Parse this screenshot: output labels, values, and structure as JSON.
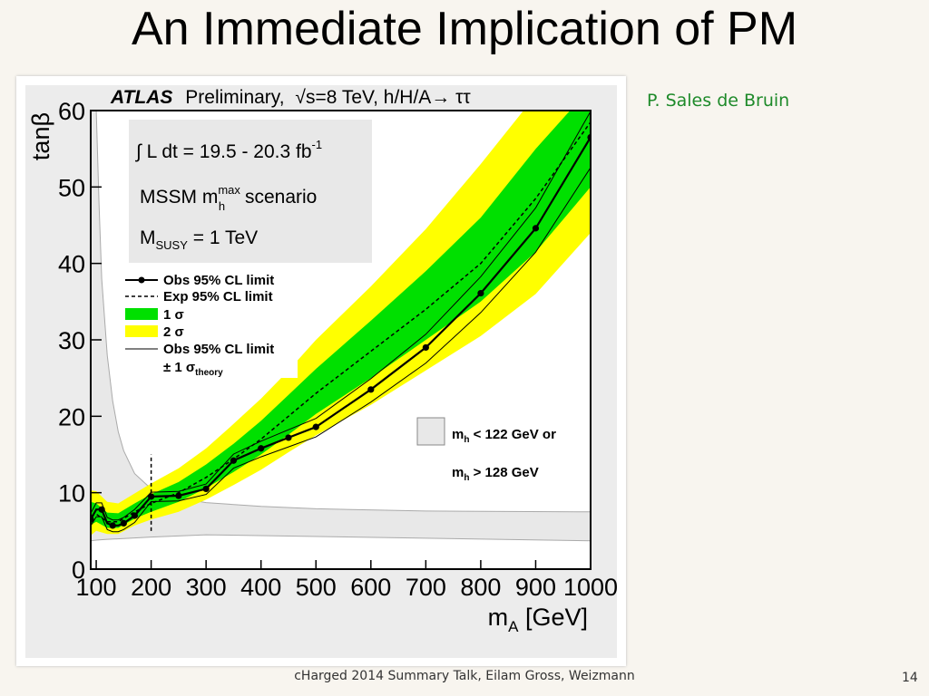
{
  "slide": {
    "title": "An Immediate Implication of PM",
    "author": "P. Sales de Bruin",
    "footer": "cHarged 2014 Summary Talk, Eilam Gross, Weizmann",
    "page_number": "14"
  },
  "chart_data": {
    "type": "line",
    "header": {
      "experiment": "ATLAS",
      "status": "Preliminary,",
      "energy": "√s=8 TeV, h/H/A→ ττ"
    },
    "info_box": {
      "lumi_prefix": "∫ L dt = 19.5 - 20.3 fb",
      "lumi_superscript": "-1",
      "scenario_prefix": "MSSM m",
      "scenario_sup": "max",
      "scenario_sub": "h",
      "scenario_suffix": " scenario",
      "msusy_prefix": "M",
      "msusy_sub": "SUSY",
      "msusy_suffix": " = 1 TeV"
    },
    "legend": {
      "obs": "Obs 95% CL limit",
      "exp": "Exp 95% CL limit",
      "one_sigma": "1 σ",
      "two_sigma": "2 σ",
      "theory_line1": "Obs 95% CL limit",
      "theory_line2_prefix": "± 1 σ",
      "theory_line2_sub": "theory"
    },
    "excluded_box": {
      "line1_prefix": "m",
      "line1_sub": "h",
      "line1_suffix": " < 122 GeV or",
      "line2_prefix": "m",
      "line2_sub": "h",
      "line2_suffix": " > 128 GeV"
    },
    "xlabel_main": "m",
    "xlabel_sub": "A",
    "xlabel_unit": " [GeV]",
    "ylabel": "tanβ",
    "xlim": [
      90,
      1000
    ],
    "ylim": [
      0,
      60
    ],
    "xticks": [
      100,
      200,
      300,
      400,
      500,
      600,
      700,
      800,
      900,
      1000
    ],
    "yticks": [
      0,
      10,
      20,
      30,
      40,
      50,
      60
    ],
    "colors": {
      "one_sigma": "#00e000",
      "two_sigma": "#ffff00",
      "excluded": "#e8e8e8"
    },
    "series": [
      {
        "name": "Obs 95% CL limit",
        "x": [
          90,
          100,
          110,
          120,
          130,
          140,
          150,
          170,
          200,
          250,
          300,
          350,
          400,
          450,
          500,
          600,
          700,
          800,
          900,
          1000
        ],
        "y": [
          6.5,
          7.8,
          7.8,
          6.0,
          5.7,
          5.7,
          6.0,
          7.0,
          9.5,
          9.6,
          10.5,
          14.2,
          15.8,
          17.2,
          18.6,
          23.5,
          29.0,
          36.1,
          44.6,
          56.5
        ]
      },
      {
        "name": "Exp 95% CL limit",
        "x": [
          90,
          100,
          120,
          140,
          170,
          200,
          250,
          300,
          350,
          400,
          450,
          500,
          600,
          700,
          800,
          900,
          1000
        ],
        "y": [
          7.0,
          7.2,
          6.2,
          6.2,
          7.5,
          8.6,
          10.0,
          12.0,
          14.4,
          17.0,
          20.0,
          23.0,
          28.5,
          34.0,
          40.0,
          48.5,
          58.5
        ]
      },
      {
        "name": "1 σ",
        "x": [
          90,
          100,
          120,
          140,
          170,
          200,
          250,
          300,
          350,
          400,
          450,
          500,
          600,
          700,
          800,
          900,
          1000
        ],
        "low": [
          5.8,
          6.2,
          5.4,
          5.4,
          6.6,
          7.5,
          8.8,
          10.6,
          12.7,
          15.0,
          17.6,
          20.3,
          25.0,
          30.0,
          35.0,
          41.5,
          50.0
        ],
        "high": [
          8.8,
          8.6,
          7.4,
          7.3,
          8.6,
          9.8,
          11.4,
          13.7,
          16.4,
          19.4,
          22.8,
          26.2,
          32.5,
          39.0,
          46.0,
          55.0,
          63.0
        ]
      },
      {
        "name": "2 σ",
        "x": [
          90,
          100,
          120,
          140,
          170,
          200,
          250,
          300,
          350,
          400,
          450,
          500,
          600,
          700,
          800,
          900,
          1000
        ],
        "low": [
          4.4,
          5.0,
          4.6,
          4.6,
          5.7,
          6.5,
          7.5,
          9.1,
          11.0,
          13.0,
          15.3,
          17.5,
          21.5,
          26.0,
          30.5,
          36.0,
          44.0
        ],
        "high": [
          10.3,
          10.2,
          8.8,
          8.6,
          9.9,
          11.2,
          13.2,
          15.8,
          19.0,
          22.3,
          26.0,
          30.0,
          37.0,
          44.5,
          53.0,
          62.0,
          70.0
        ]
      }
    ]
  }
}
